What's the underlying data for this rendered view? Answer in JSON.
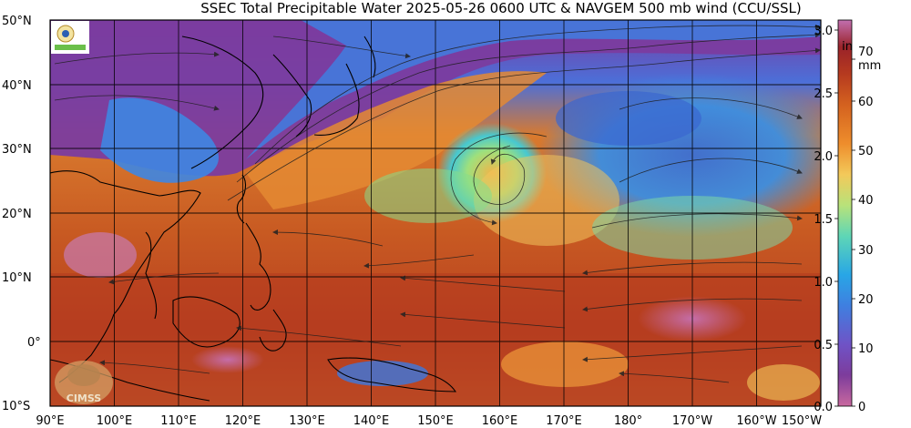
{
  "title": "SSEC Total Precipitable Water  2025-05-26 0600 UTC & NAVGEM 500 mb wind (CCU/SSL)",
  "lat_labels": [
    "50°N",
    "40°N",
    "30°N",
    "20°N",
    "10°N",
    "0°",
    "10°S"
  ],
  "lon_labels": [
    "90°E",
    "100°E",
    "110°E",
    "120°E",
    "130°E",
    "140°E",
    "150°E",
    "160°E",
    "170°E",
    "180°",
    "170°W",
    "160°W",
    "150°W"
  ],
  "colorbar": {
    "inch_label": "in",
    "mm_label": "mm",
    "inch_ticks": [
      "3.0",
      "2.5",
      "2.0",
      "1.5",
      "1.0",
      "0.5",
      "0.0"
    ],
    "mm_ticks": [
      "70",
      "60",
      "50",
      "40",
      "30",
      "20",
      "10",
      "0"
    ],
    "colors": [
      "#c9699f",
      "#7d3c9c",
      "#6f53c6",
      "#3f7fe0",
      "#28a6e6",
      "#5ed6b6",
      "#b8e27a",
      "#f3c95a",
      "#ee8d2c",
      "#d4621f",
      "#b63a1f",
      "#9a2329",
      "#a64878",
      "#c26fb0"
    ]
  },
  "logos": {
    "top_left": "SSEC logo",
    "bottom_left": "CIMSS"
  },
  "colors": {
    "ocean_moist": "#c65a23",
    "ocean_dry": "#3d86e0",
    "north_dry": "#7a3ba0"
  }
}
